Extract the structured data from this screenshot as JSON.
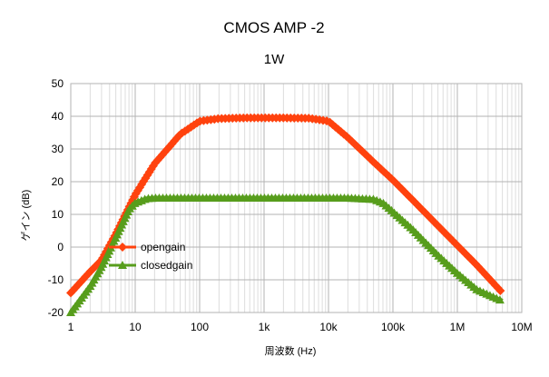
{
  "chart_data": {
    "type": "line",
    "title": "CMOS AMP -2",
    "subtitle": "1W",
    "xlabel": "周波数 (Hz)",
    "ylabel": "ゲイン (dB)",
    "xscale": "log",
    "xlim": [
      1,
      10000000
    ],
    "ylim": [
      -20,
      50
    ],
    "xticks": [
      1,
      10,
      100,
      1000,
      10000,
      100000,
      1000000,
      10000000
    ],
    "xtick_labels": [
      "1",
      "10",
      "100",
      "1k",
      "10k",
      "100k",
      "1M",
      "10M"
    ],
    "yticks": [
      -20,
      -10,
      0,
      10,
      20,
      30,
      40,
      50
    ],
    "ytick_labels": [
      "-20",
      "-10",
      "0",
      "10",
      "20",
      "30",
      "40",
      "50"
    ],
    "grid": true,
    "legend_position": "lower-left",
    "series": [
      {
        "name": "opengain",
        "color": "#ff420e",
        "marker": "diamond",
        "x": [
          1,
          2,
          3,
          5,
          10,
          20,
          50,
          100,
          200,
          500,
          1000,
          2000,
          5000,
          10000,
          20000,
          50000,
          100000,
          200000,
          500000,
          1000000,
          2000000,
          5000000
        ],
        "y": [
          -14,
          -7.5,
          -4,
          4,
          16,
          25.5,
          34.5,
          38.5,
          39.3,
          39.5,
          39.5,
          39.5,
          39.4,
          38.5,
          33.5,
          26,
          20.5,
          14.5,
          6.5,
          0.5,
          -5.5,
          -14
        ]
      },
      {
        "name": "closedgain",
        "color": "#579d1c",
        "marker": "triangle",
        "x": [
          1,
          2,
          3,
          5,
          8,
          10,
          15,
          20,
          50,
          100,
          1000,
          10000,
          20000,
          50000,
          70000,
          100000,
          200000,
          500000,
          1000000,
          2000000,
          5000000
        ],
        "y": [
          -20,
          -12,
          -6,
          3,
          11.5,
          13.5,
          14.8,
          15,
          15,
          15,
          15,
          15,
          15,
          14.6,
          13.5,
          10.8,
          5.5,
          -2.5,
          -8,
          -13,
          -16.5
        ]
      }
    ]
  }
}
